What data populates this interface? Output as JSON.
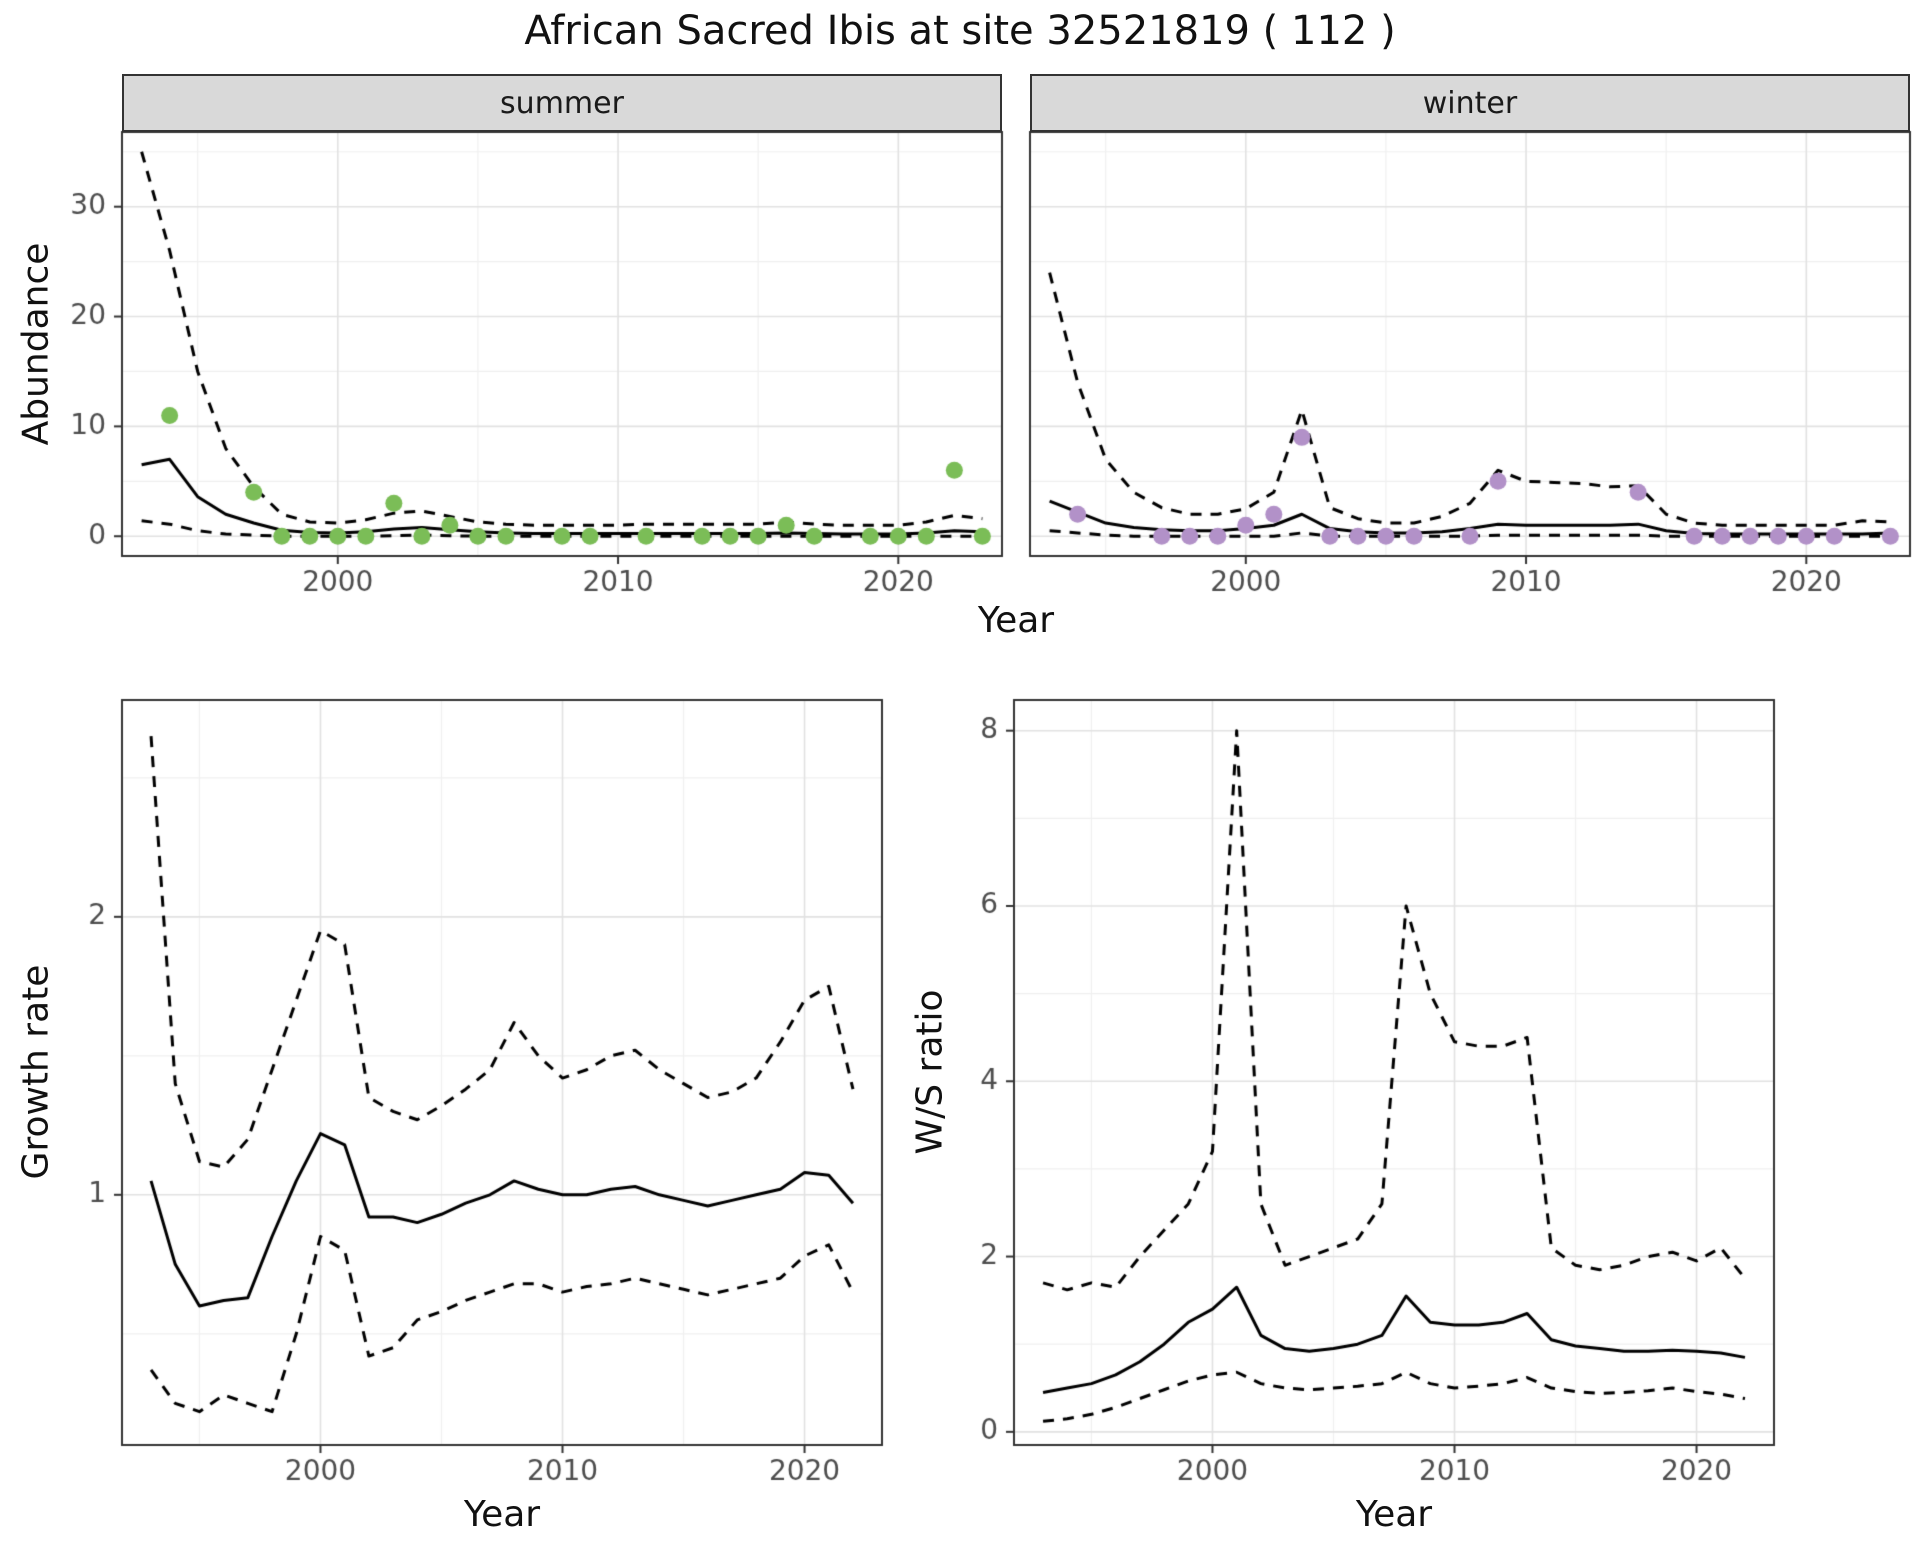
{
  "title": "African Sacred Ibis at site 32521819 ( 112 )",
  "colors": {
    "summer_point": "#7bbd57",
    "winter_point": "#b291c8",
    "line": "#000000",
    "grid_major": "#e2e2e2",
    "grid_minor": "#f0f0f0",
    "strip_bg": "#d9d9d9",
    "panel_border": "#333333",
    "tick_text": "#4d4d4d"
  },
  "chart_data": [
    {
      "type": "line",
      "facet": "summer",
      "xlabel": "Year",
      "ylabel": "Abundance",
      "xlim": [
        1992.3,
        2023.7
      ],
      "ylim": [
        -1.8,
        36.8
      ],
      "xticks": [
        2000,
        2010,
        2020
      ],
      "yticks": [
        0,
        10,
        20,
        30
      ],
      "xticks_minor": [
        1995,
        2005,
        2015
      ],
      "yticks_minor": [
        5,
        15,
        25,
        35
      ],
      "series": [
        {
          "name": "model-fit",
          "style": "solid",
          "color": "#000000",
          "x": [
            1993,
            1994,
            1995,
            1996,
            1997,
            1998,
            1999,
            2000,
            2001,
            2002,
            2003,
            2004,
            2005,
            2006,
            2007,
            2008,
            2009,
            2010,
            2011,
            2012,
            2013,
            2014,
            2015,
            2016,
            2017,
            2018,
            2019,
            2020,
            2021,
            2022,
            2023
          ],
          "y": [
            6.5,
            7.0,
            3.6,
            2.0,
            1.2,
            0.55,
            0.35,
            0.3,
            0.4,
            0.65,
            0.8,
            0.6,
            0.4,
            0.3,
            0.25,
            0.25,
            0.25,
            0.25,
            0.25,
            0.25,
            0.25,
            0.25,
            0.25,
            0.3,
            0.25,
            0.2,
            0.2,
            0.2,
            0.3,
            0.5,
            0.4
          ]
        },
        {
          "name": "upper-ci",
          "style": "dashed",
          "color": "#000000",
          "x": [
            1993,
            1994,
            1995,
            1996,
            1997,
            1998,
            1999,
            2000,
            2001,
            2002,
            2003,
            2004,
            2005,
            2006,
            2007,
            2008,
            2009,
            2010,
            2011,
            2012,
            2013,
            2014,
            2015,
            2016,
            2017,
            2018,
            2019,
            2020,
            2021,
            2022,
            2023
          ],
          "y": [
            35,
            26,
            15,
            8,
            4.5,
            2.0,
            1.3,
            1.2,
            1.5,
            2.1,
            2.3,
            1.8,
            1.3,
            1.1,
            1.0,
            1.0,
            1.0,
            1.0,
            1.1,
            1.1,
            1.1,
            1.1,
            1.1,
            1.3,
            1.1,
            1.0,
            1.0,
            1.0,
            1.3,
            1.9,
            1.6
          ]
        },
        {
          "name": "lower-ci",
          "style": "dashed",
          "color": "#000000",
          "x": [
            1993,
            1994,
            1995,
            1996,
            1997,
            1998,
            1999,
            2000,
            2001,
            2002,
            2003,
            2004,
            2005,
            2006,
            2007,
            2008,
            2009,
            2010,
            2011,
            2012,
            2013,
            2014,
            2015,
            2016,
            2017,
            2018,
            2019,
            2020,
            2021,
            2022,
            2023
          ],
          "y": [
            1.4,
            1.1,
            0.5,
            0.2,
            0.1,
            0,
            0,
            0,
            0,
            0.05,
            0.1,
            0.05,
            0,
            0,
            0,
            0,
            0,
            0,
            0,
            0,
            0,
            0,
            0,
            0,
            0,
            0,
            0,
            0,
            0,
            0,
            0
          ]
        },
        {
          "name": "observed-counts",
          "style": "points",
          "color": "#7bbd57",
          "x": [
            1994,
            1997,
            1998,
            1999,
            2000,
            2001,
            2002,
            2003,
            2004,
            2005,
            2006,
            2008,
            2009,
            2011,
            2013,
            2014,
            2015,
            2016,
            2017,
            2019,
            2020,
            2021,
            2022,
            2023
          ],
          "y": [
            11,
            4,
            0,
            0,
            0,
            0,
            3,
            0,
            1,
            0,
            0,
            0,
            0,
            0,
            0,
            0,
            0,
            1,
            0,
            0,
            0,
            0,
            6,
            0
          ]
        }
      ]
    },
    {
      "type": "line",
      "facet": "winter",
      "xlabel": "Year",
      "ylabel": "Abundance",
      "xlim": [
        1992.3,
        2023.7
      ],
      "ylim": [
        -1.8,
        36.8
      ],
      "xticks": [
        2000,
        2010,
        2020
      ],
      "yticks": [
        0,
        10,
        20,
        30
      ],
      "xticks_minor": [
        1995,
        2005,
        2015
      ],
      "yticks_minor": [
        5,
        15,
        25,
        35
      ],
      "series": [
        {
          "name": "model-fit",
          "style": "solid",
          "color": "#000000",
          "x": [
            1993,
            1994,
            1995,
            1996,
            1997,
            1998,
            1999,
            2000,
            2001,
            2002,
            2003,
            2004,
            2005,
            2006,
            2007,
            2008,
            2009,
            2010,
            2011,
            2012,
            2013,
            2014,
            2015,
            2016,
            2017,
            2018,
            2019,
            2020,
            2021,
            2022,
            2023
          ],
          "y": [
            3.2,
            2.2,
            1.2,
            0.8,
            0.6,
            0.5,
            0.5,
            0.7,
            1.0,
            2.0,
            0.7,
            0.4,
            0.3,
            0.3,
            0.4,
            0.7,
            1.1,
            1.0,
            1.0,
            1.0,
            1.0,
            1.1,
            0.5,
            0.25,
            0.2,
            0.2,
            0.2,
            0.2,
            0.2,
            0.2,
            0.3
          ]
        },
        {
          "name": "upper-ci",
          "style": "dashed",
          "color": "#000000",
          "x": [
            1993,
            1994,
            1995,
            1996,
            1997,
            1998,
            1999,
            2000,
            2001,
            2002,
            2003,
            2004,
            2005,
            2006,
            2007,
            2008,
            2009,
            2010,
            2011,
            2012,
            2013,
            2014,
            2015,
            2016,
            2017,
            2018,
            2019,
            2020,
            2021,
            2022,
            2023
          ],
          "y": [
            24,
            14,
            7,
            4,
            2.6,
            2.0,
            2.0,
            2.5,
            4.0,
            11.5,
            2.6,
            1.6,
            1.2,
            1.2,
            1.8,
            3.0,
            6.0,
            5.0,
            4.9,
            4.8,
            4.5,
            4.6,
            2.0,
            1.2,
            1.0,
            1.0,
            1.0,
            1.0,
            1.0,
            1.4,
            1.3
          ]
        },
        {
          "name": "lower-ci",
          "style": "dashed",
          "color": "#000000",
          "x": [
            1993,
            1994,
            1995,
            1996,
            1997,
            1998,
            1999,
            2000,
            2001,
            2002,
            2003,
            2004,
            2005,
            2006,
            2007,
            2008,
            2009,
            2010,
            2011,
            2012,
            2013,
            2014,
            2015,
            2016,
            2017,
            2018,
            2019,
            2020,
            2021,
            2022,
            2023
          ],
          "y": [
            0.5,
            0.3,
            0.1,
            0,
            0,
            0,
            0,
            0,
            0,
            0.3,
            0,
            0,
            0,
            0,
            0,
            0,
            0.1,
            0.1,
            0.1,
            0.1,
            0.1,
            0.1,
            0,
            0,
            0,
            0,
            0,
            0,
            0,
            0,
            0
          ]
        },
        {
          "name": "observed-counts",
          "style": "points",
          "color": "#b291c8",
          "x": [
            1994,
            1997,
            1998,
            1999,
            2000,
            2001,
            2002,
            2003,
            2004,
            2005,
            2006,
            2008,
            2009,
            2014,
            2016,
            2017,
            2018,
            2019,
            2020,
            2021,
            2023
          ],
          "y": [
            2,
            0,
            0,
            0,
            1,
            2,
            9,
            0,
            0,
            0,
            0,
            0,
            5,
            4,
            0,
            0,
            0,
            0,
            0,
            0,
            0
          ]
        }
      ]
    },
    {
      "type": "line",
      "facet": null,
      "xlabel": "Year",
      "ylabel": "Growth rate",
      "xlim": [
        1991.8,
        2023.2
      ],
      "ylim": [
        0.1,
        2.78
      ],
      "xticks": [
        2000,
        2010,
        2020
      ],
      "yticks": [
        1,
        2
      ],
      "xticks_minor": [
        1995,
        2005,
        2015
      ],
      "yticks_minor": [
        0.5,
        1.5,
        2.5
      ],
      "series": [
        {
          "name": "model-fit",
          "style": "solid",
          "color": "#000000",
          "x": [
            1993,
            1994,
            1995,
            1996,
            1997,
            1998,
            1999,
            2000,
            2001,
            2002,
            2003,
            2004,
            2005,
            2006,
            2007,
            2008,
            2009,
            2010,
            2011,
            2012,
            2013,
            2014,
            2015,
            2016,
            2017,
            2018,
            2019,
            2020,
            2021,
            2022
          ],
          "y": [
            1.05,
            0.75,
            0.6,
            0.62,
            0.63,
            0.85,
            1.05,
            1.22,
            1.18,
            0.92,
            0.92,
            0.9,
            0.93,
            0.97,
            1.0,
            1.05,
            1.02,
            1.0,
            1.0,
            1.02,
            1.03,
            1.0,
            0.98,
            0.96,
            0.98,
            1.0,
            1.02,
            1.08,
            1.07,
            0.97
          ]
        },
        {
          "name": "upper-ci",
          "style": "dashed",
          "color": "#000000",
          "x": [
            1993,
            1994,
            1995,
            1996,
            1997,
            1998,
            1999,
            2000,
            2001,
            2002,
            2003,
            2004,
            2005,
            2006,
            2007,
            2008,
            2009,
            2010,
            2011,
            2012,
            2013,
            2014,
            2015,
            2016,
            2017,
            2018,
            2019,
            2020,
            2021,
            2022
          ],
          "y": [
            2.65,
            1.4,
            1.12,
            1.1,
            1.2,
            1.45,
            1.7,
            1.95,
            1.9,
            1.35,
            1.3,
            1.27,
            1.32,
            1.38,
            1.45,
            1.62,
            1.5,
            1.42,
            1.45,
            1.5,
            1.52,
            1.45,
            1.4,
            1.35,
            1.37,
            1.42,
            1.55,
            1.7,
            1.75,
            1.38
          ]
        },
        {
          "name": "lower-ci",
          "style": "dashed",
          "color": "#000000",
          "x": [
            1993,
            1994,
            1995,
            1996,
            1997,
            1998,
            1999,
            2000,
            2001,
            2002,
            2003,
            2004,
            2005,
            2006,
            2007,
            2008,
            2009,
            2010,
            2011,
            2012,
            2013,
            2014,
            2015,
            2016,
            2017,
            2018,
            2019,
            2020,
            2021,
            2022
          ],
          "y": [
            0.37,
            0.25,
            0.22,
            0.28,
            0.25,
            0.22,
            0.5,
            0.85,
            0.8,
            0.42,
            0.45,
            0.55,
            0.58,
            0.62,
            0.65,
            0.68,
            0.68,
            0.65,
            0.67,
            0.68,
            0.7,
            0.68,
            0.66,
            0.64,
            0.66,
            0.68,
            0.7,
            0.78,
            0.82,
            0.65
          ]
        }
      ]
    },
    {
      "type": "line",
      "facet": null,
      "xlabel": "Year",
      "ylabel": "W/S ratio",
      "xlim": [
        1991.8,
        2023.2
      ],
      "ylim": [
        -0.15,
        8.35
      ],
      "xticks": [
        2000,
        2010,
        2020
      ],
      "yticks": [
        0,
        2,
        4,
        6,
        8
      ],
      "xticks_minor": [
        1995,
        2005,
        2015
      ],
      "yticks_minor": [
        1,
        3,
        5,
        7
      ],
      "series": [
        {
          "name": "model-fit",
          "style": "solid",
          "color": "#000000",
          "x": [
            1993,
            1994,
            1995,
            1996,
            1997,
            1998,
            1999,
            2000,
            2001,
            2002,
            2003,
            2004,
            2005,
            2006,
            2007,
            2008,
            2009,
            2010,
            2011,
            2012,
            2013,
            2014,
            2015,
            2016,
            2017,
            2018,
            2019,
            2020,
            2021,
            2022
          ],
          "y": [
            0.45,
            0.5,
            0.55,
            0.65,
            0.8,
            1.0,
            1.25,
            1.4,
            1.65,
            1.1,
            0.95,
            0.92,
            0.95,
            1.0,
            1.1,
            1.55,
            1.25,
            1.22,
            1.22,
            1.25,
            1.35,
            1.05,
            0.98,
            0.95,
            0.92,
            0.92,
            0.93,
            0.92,
            0.9,
            0.85
          ]
        },
        {
          "name": "upper-ci",
          "style": "dashed",
          "color": "#000000",
          "x": [
            1993,
            1994,
            1995,
            1996,
            1997,
            1998,
            1999,
            2000,
            2001,
            2002,
            2003,
            2004,
            2005,
            2006,
            2007,
            2008,
            2009,
            2010,
            2011,
            2012,
            2013,
            2014,
            2015,
            2016,
            2017,
            2018,
            2019,
            2020,
            2021,
            2022
          ],
          "y": [
            1.7,
            1.62,
            1.7,
            1.65,
            2.0,
            2.3,
            2.6,
            3.2,
            8.0,
            2.6,
            1.9,
            2.0,
            2.1,
            2.2,
            2.6,
            6.0,
            5.0,
            4.45,
            4.4,
            4.4,
            4.5,
            2.1,
            1.9,
            1.85,
            1.9,
            2.0,
            2.05,
            1.95,
            2.1,
            1.75
          ]
        },
        {
          "name": "lower-ci",
          "style": "dashed",
          "color": "#000000",
          "x": [
            1993,
            1994,
            1995,
            1996,
            1997,
            1998,
            1999,
            2000,
            2001,
            2002,
            2003,
            2004,
            2005,
            2006,
            2007,
            2008,
            2009,
            2010,
            2011,
            2012,
            2013,
            2014,
            2015,
            2016,
            2017,
            2018,
            2019,
            2020,
            2021,
            2022
          ],
          "y": [
            0.12,
            0.15,
            0.2,
            0.28,
            0.38,
            0.48,
            0.58,
            0.65,
            0.68,
            0.55,
            0.5,
            0.48,
            0.5,
            0.52,
            0.55,
            0.68,
            0.55,
            0.5,
            0.52,
            0.55,
            0.62,
            0.5,
            0.46,
            0.44,
            0.45,
            0.47,
            0.5,
            0.46,
            0.43,
            0.38
          ]
        }
      ]
    }
  ]
}
